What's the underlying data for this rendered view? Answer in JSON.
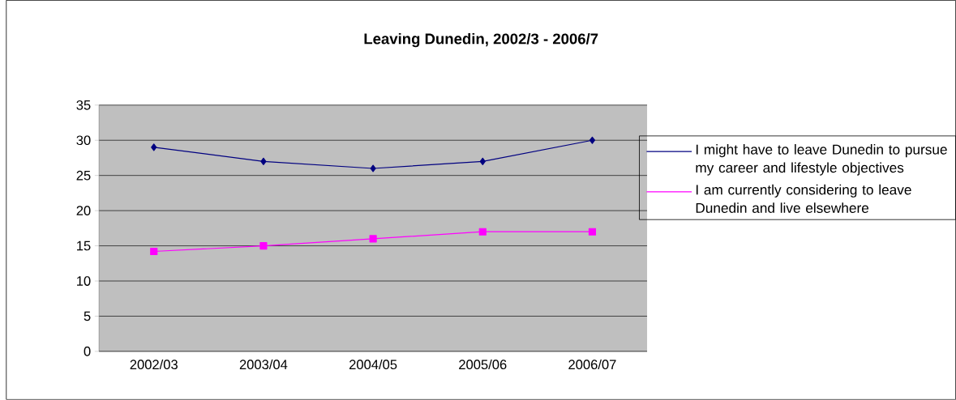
{
  "chart_data": {
    "type": "line",
    "title": "Leaving Dunedin, 2002/3 - 2006/7",
    "categories": [
      "2002/03",
      "2003/04",
      "2004/05",
      "2005/06",
      "2006/07"
    ],
    "series": [
      {
        "name": "I might have to leave Dunedin to pursue my career and lifestyle objectives",
        "color": "#000080",
        "marker": "diamond",
        "values": [
          29,
          27,
          26,
          27,
          30
        ]
      },
      {
        "name": "I am currently considering to leave Dunedin and live elsewhere",
        "color": "#ff00ff",
        "marker": "square",
        "values": [
          14.2,
          15,
          16,
          17,
          17
        ]
      }
    ],
    "ylim": [
      0,
      35
    ],
    "yticks": [
      0,
      5,
      10,
      15,
      20,
      25,
      30,
      35
    ],
    "grid": "y",
    "legend": "right",
    "line_style": "solid"
  }
}
